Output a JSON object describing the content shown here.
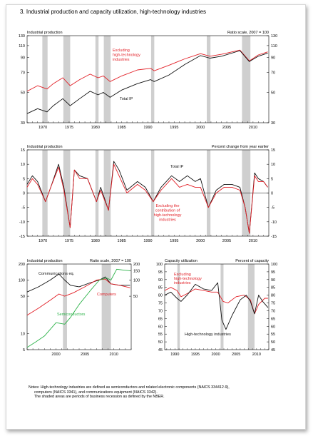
{
  "page": {
    "title": "3.  Industrial production and capacity utilization, high-technology industries",
    "notes": [
      "Notes:  High-technology industries are defined as semiconductors and related electronic components (NAICS 334412-9),",
      "computers (NAICS 3341), and communications equipment (NAICS 3342).",
      "The shaded areas are periods of business recession as defined by the NBER."
    ]
  },
  "colors": {
    "red": "#e21f26",
    "black": "#111111",
    "green": "#2db34a",
    "recession": "#cfcfcf"
  },
  "chart_data": [
    {
      "id": "top",
      "type": "line",
      "left_title": "Industrial production",
      "right_title": "Ratio scale, 2007 = 100",
      "scale": "log",
      "xlim": [
        1967,
        2013
      ],
      "ylim": [
        30,
        130
      ],
      "ytick_labels": [
        "130",
        "110",
        "90",
        "70",
        "50",
        "30"
      ],
      "yticks": [
        130,
        110,
        90,
        70,
        50,
        30
      ],
      "xtick_labels": [
        "1970",
        "1975",
        "1980",
        "1985",
        "1990",
        "1995",
        "2000",
        "2005",
        "2010"
      ],
      "xticks": [
        1970,
        1975,
        1980,
        1985,
        1990,
        1995,
        2000,
        2005,
        2010
      ],
      "recessions": [
        [
          1969.9,
          1970.9
        ],
        [
          1973.9,
          1975.2
        ],
        [
          1980.0,
          1980.6
        ],
        [
          1981.6,
          1982.9
        ],
        [
          1990.6,
          1991.2
        ],
        [
          2001.2,
          2001.9
        ],
        [
          2007.9,
          2009.5
        ]
      ],
      "series": [
        {
          "name": "Excluding high-technology industries",
          "color": "red",
          "x": [
            1967,
            1969,
            1970.8,
            1972,
            1973.8,
            1975.2,
            1977,
            1979,
            1980.5,
            1981.5,
            1982.8,
            1985,
            1988,
            1990.5,
            1991.2,
            1994,
            1997,
            2000,
            2001.8,
            2004,
            2007.5,
            2009.3,
            2011,
            2012.8
          ],
          "y": [
            51,
            56,
            53,
            58,
            64,
            56,
            62,
            68,
            64,
            66,
            60,
            66,
            73,
            75,
            72,
            79,
            88,
            96,
            92,
            95,
            102,
            85,
            94,
            99
          ]
        },
        {
          "name": "Total IP",
          "color": "black",
          "x": [
            1967,
            1969,
            1970.8,
            1972,
            1973.8,
            1975.2,
            1977,
            1979,
            1980.5,
            1981.5,
            1982.8,
            1985,
            1988,
            1990.5,
            1991.2,
            1994,
            1997,
            2000,
            2001.8,
            2004,
            2007.5,
            2009.3,
            2011,
            2012.8
          ],
          "y": [
            35,
            38,
            36,
            40,
            45,
            40,
            45,
            51,
            48,
            50,
            46,
            52,
            58,
            62,
            60,
            67,
            80,
            93,
            89,
            92,
            101,
            84,
            92,
            97
          ]
        }
      ],
      "annotations": [
        "Excluding high-technology industries",
        "Total IP"
      ]
    },
    {
      "id": "middle",
      "type": "line",
      "left_title": "Industrial production",
      "right_title": "Percent change from year earlier",
      "scale": "linear",
      "xlim": [
        1967,
        2013
      ],
      "ylim": [
        -15,
        15
      ],
      "ytick_labels": [
        "15",
        "10",
        "5",
        "0",
        "-5",
        "-10",
        "-15"
      ],
      "yticks": [
        15,
        10,
        5,
        0,
        -5,
        -10,
        -15
      ],
      "xtick_labels": [
        "1970",
        "1975",
        "1980",
        "1985",
        "1990",
        "1995",
        "2000",
        "2005",
        "2010"
      ],
      "xticks": [
        1970,
        1975,
        1980,
        1985,
        1990,
        1995,
        2000,
        2005,
        2010
      ],
      "recessions": [
        [
          1969.9,
          1970.9
        ],
        [
          1973.9,
          1975.2
        ],
        [
          1980.0,
          1980.6
        ],
        [
          1981.6,
          1982.9
        ],
        [
          1990.6,
          1991.2
        ],
        [
          2001.2,
          2001.9
        ],
        [
          2007.9,
          2009.5
        ]
      ],
      "series": [
        {
          "name": "Total IP",
          "color": "black",
          "x": [
            1967,
            1968,
            1969,
            1970.5,
            1971.5,
            1973,
            1974,
            1975.2,
            1976,
            1977,
            1978.5,
            1980.2,
            1981,
            1982.5,
            1983.5,
            1984.5,
            1986,
            1988,
            1989.5,
            1991,
            1992.5,
            1994.5,
            1996,
            1997.5,
            1999,
            2000,
            2001.5,
            2003,
            2004.5,
            2006,
            2007.5,
            2008.5,
            2009.3,
            2010.3,
            2011,
            2012,
            2012.8
          ],
          "y": [
            3,
            6,
            4,
            -3,
            2,
            10,
            2,
            -12,
            8,
            6,
            5,
            -3,
            2,
            -6,
            11,
            8,
            1,
            4,
            2,
            -3,
            2,
            6,
            4,
            6,
            4,
            5,
            -5,
            1,
            3,
            3,
            2,
            -5,
            -14,
            7,
            5,
            4,
            2
          ]
        },
        {
          "name": "Excluding the contribution of high-technology industries",
          "color": "red",
          "x": [
            1967,
            1968,
            1969,
            1970.5,
            1971.5,
            1973,
            1974,
            1975.2,
            1976,
            1977,
            1978.5,
            1980.2,
            1981,
            1982.5,
            1983.5,
            1984.5,
            1986,
            1988,
            1989.5,
            1991,
            1992.5,
            1994.5,
            1996,
            1997.5,
            1999,
            2000,
            2001.5,
            2003,
            2004.5,
            2006,
            2007.5,
            2008.5,
            2009.3,
            2010.3,
            2011,
            2012,
            2012.8
          ],
          "y": [
            2,
            5,
            3,
            -3,
            2,
            9,
            1,
            -12,
            8,
            5,
            5,
            -3,
            1,
            -6,
            10,
            6,
            0,
            3,
            1,
            -3,
            1,
            5,
            2,
            3,
            2,
            2,
            -5,
            0,
            2,
            2,
            1,
            -5,
            -14,
            6,
            4,
            4,
            2
          ]
        }
      ],
      "annotations": [
        "Total IP",
        "Excluding the contribution of high-technology industries"
      ]
    },
    {
      "id": "bottom-left",
      "type": "line",
      "left_title": "Industrial production",
      "right_title": "Ratio scale, 2007 = 100",
      "scale": "log",
      "xlim": [
        1995,
        2013
      ],
      "ylim": [
        5,
        200
      ],
      "ytick_labels": [
        "200",
        "100",
        "50",
        "10",
        "5"
      ],
      "yticks": [
        200,
        100,
        50,
        10,
        5
      ],
      "right_tick_labels": [
        "200",
        "150",
        "100",
        "50"
      ],
      "right_ticks": [
        200,
        150,
        100,
        50
      ],
      "xtick_labels": [
        "2000",
        "2005",
        "2010"
      ],
      "xticks": [
        2000,
        2005,
        2010
      ],
      "recessions": [
        [
          2001.2,
          2001.9
        ],
        [
          2007.9,
          2009.5
        ]
      ],
      "series": [
        {
          "name": "Communications eq.",
          "color": "black",
          "x": [
            1995,
            1997,
            1999,
            2000.5,
            2001.5,
            2002.5,
            2004,
            2006,
            2007.5,
            2008.5,
            2009.5,
            2011,
            2012.8
          ],
          "y": [
            60,
            75,
            100,
            130,
            100,
            80,
            75,
            90,
            100,
            115,
            85,
            80,
            80
          ]
        },
        {
          "name": "Computers",
          "color": "red",
          "x": [
            1995,
            1997,
            1999,
            2000.5,
            2001.5,
            2003,
            2005,
            2007,
            2008.5,
            2009.5,
            2011,
            2012.8
          ],
          "y": [
            22,
            30,
            42,
            55,
            50,
            58,
            75,
            100,
            105,
            85,
            80,
            72
          ]
        },
        {
          "name": "Semiconductors",
          "color": "green",
          "x": [
            1995,
            1996.5,
            1998,
            2000,
            2001.5,
            2002.5,
            2004,
            2006,
            2007.5,
            2008.7,
            2009.5,
            2010.5,
            2011.5,
            2012.8
          ],
          "y": [
            5.5,
            7,
            9,
            16,
            15,
            20,
            35,
            65,
            100,
            110,
            100,
            160,
            155,
            150
          ]
        }
      ],
      "annotations": [
        "Communications eq.",
        "Computers",
        "Semiconductors"
      ]
    },
    {
      "id": "bottom-right",
      "type": "line",
      "left_title": "Capacity utilization",
      "right_title": "Percent of capacity",
      "scale": "linear",
      "xlim": [
        1987.5,
        2013
      ],
      "ylim": [
        45,
        100
      ],
      "ytick_labels": [
        "100",
        "95",
        "90",
        "85",
        "80",
        "75",
        "70",
        "65",
        "60",
        "55",
        "50",
        "45"
      ],
      "yticks": [
        100,
        95,
        90,
        85,
        80,
        75,
        70,
        65,
        60,
        55,
        50,
        45
      ],
      "xtick_labels": [
        "1990",
        "1995",
        "2000",
        "2005",
        "2010"
      ],
      "xticks": [
        1990,
        1995,
        2000,
        2005,
        2010
      ],
      "recessions": [
        [
          1990.6,
          1991.2
        ],
        [
          2001.2,
          2001.9
        ],
        [
          2007.9,
          2009.5
        ]
      ],
      "series": [
        {
          "name": "Excluding high-technology industries",
          "color": "red",
          "x": [
            1987.5,
            1989,
            1990.5,
            1991.5,
            1993,
            1995,
            1997,
            1999,
            2000.5,
            2001.8,
            2003,
            2005,
            2007,
            2008.5,
            2009.5,
            2010.5,
            2012,
            2012.8
          ],
          "y": [
            83,
            85,
            83,
            79,
            81,
            84,
            83,
            82,
            82,
            76,
            75,
            79,
            80,
            77,
            68,
            74,
            78,
            78
          ]
        },
        {
          "name": "High-technology industries",
          "color": "black",
          "x": [
            1987.5,
            1989,
            1990.5,
            1991.5,
            1993,
            1995,
            1997,
            1999,
            2000.5,
            2001.5,
            2002.5,
            2004,
            2006,
            2007.5,
            2008.5,
            2009.5,
            2010.5,
            2011.5,
            2012.8
          ],
          "y": [
            80,
            82,
            78,
            76,
            80,
            87,
            84,
            83,
            88,
            64,
            58,
            67,
            77,
            80,
            76,
            68,
            80,
            76,
            72
          ]
        }
      ],
      "annotations": [
        "Excluding high-technology industries",
        "High-technology industries"
      ]
    }
  ]
}
